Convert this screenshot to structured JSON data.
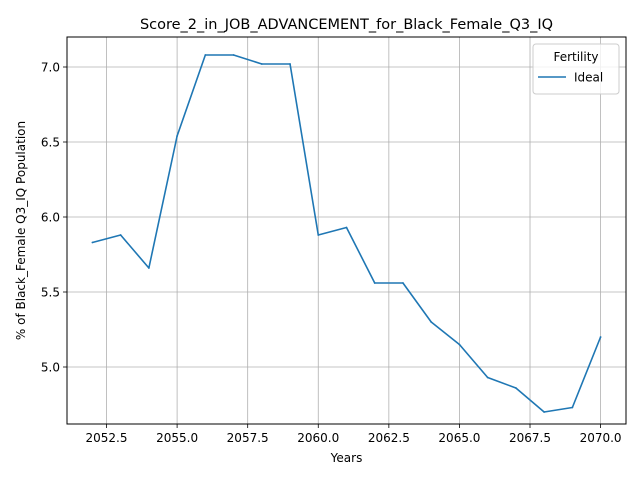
{
  "chart_data": {
    "type": "line",
    "title": "Score_2_in_JOB_ADVANCEMENT_for_Black_Female_Q3_IQ",
    "xlabel": "Years",
    "ylabel": "% of Black_Female Q3_IQ Population",
    "xlim": [
      2051.1,
      2070.9
    ],
    "ylim": [
      4.62,
      7.2
    ],
    "xticks": [
      2052.5,
      2055.0,
      2057.5,
      2060.0,
      2062.5,
      2065.0,
      2067.5,
      2070.0
    ],
    "xtick_labels": [
      "2052.5",
      "2055.0",
      "2057.5",
      "2060.0",
      "2062.5",
      "2065.0",
      "2067.5",
      "2070.0"
    ],
    "yticks": [
      5.0,
      5.5,
      6.0,
      6.5,
      7.0
    ],
    "ytick_labels": [
      "5.0",
      "5.5",
      "6.0",
      "6.5",
      "7.0"
    ],
    "grid": true,
    "legend": {
      "title": "Fertility",
      "position": "top-right"
    },
    "series": [
      {
        "name": "Ideal",
        "color": "#1f77b4",
        "x": [
          2052,
          2053,
          2054,
          2055,
          2056,
          2057,
          2058,
          2059,
          2060,
          2061,
          2062,
          2063,
          2064,
          2065,
          2066,
          2067,
          2068,
          2069,
          2070
        ],
        "y": [
          5.83,
          5.88,
          5.66,
          6.54,
          7.08,
          7.08,
          7.02,
          7.02,
          5.88,
          5.93,
          5.56,
          5.56,
          5.3,
          5.15,
          4.93,
          4.86,
          4.7,
          4.73,
          5.2
        ]
      }
    ]
  }
}
